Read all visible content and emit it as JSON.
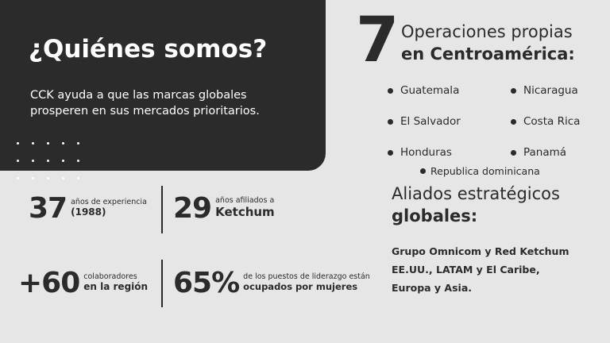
{
  "hero": {
    "title": "¿Quiénes somos?",
    "subtitle": "CCK  ayuda a que las marcas globales prosperen en sus mercados prioritarios."
  },
  "stats": [
    {
      "number": "37",
      "small": "años de experiencia",
      "strong": "(1988)"
    },
    {
      "number": "29",
      "small": "años afiliados a",
      "strong": "Ketchum"
    },
    {
      "number": "+60",
      "small": "colaboradores",
      "strong": "en la región"
    },
    {
      "number": "65%",
      "small": "de los puestos de liderazgo están",
      "strong": "ocupados por mujeres"
    }
  ],
  "operations": {
    "count": "7",
    "line1": "Operaciones propias",
    "line2": "en Centroamérica:",
    "countries": [
      "Guatemala",
      "Nicaragua",
      "El Salvador",
      "Costa Rica",
      "Honduras",
      "Panamá",
      "Republica dominicana"
    ]
  },
  "allies": {
    "line1": "Aliados estratégicos",
    "line2": "globales:",
    "text": "Grupo Omnicom y Red Ketchum EE.UU., LATAM y El Caribe, Europa y Asia."
  },
  "colors": {
    "dark": "#2b2b2b",
    "background": "#e6e6e6",
    "text_light": "#ffffff"
  }
}
